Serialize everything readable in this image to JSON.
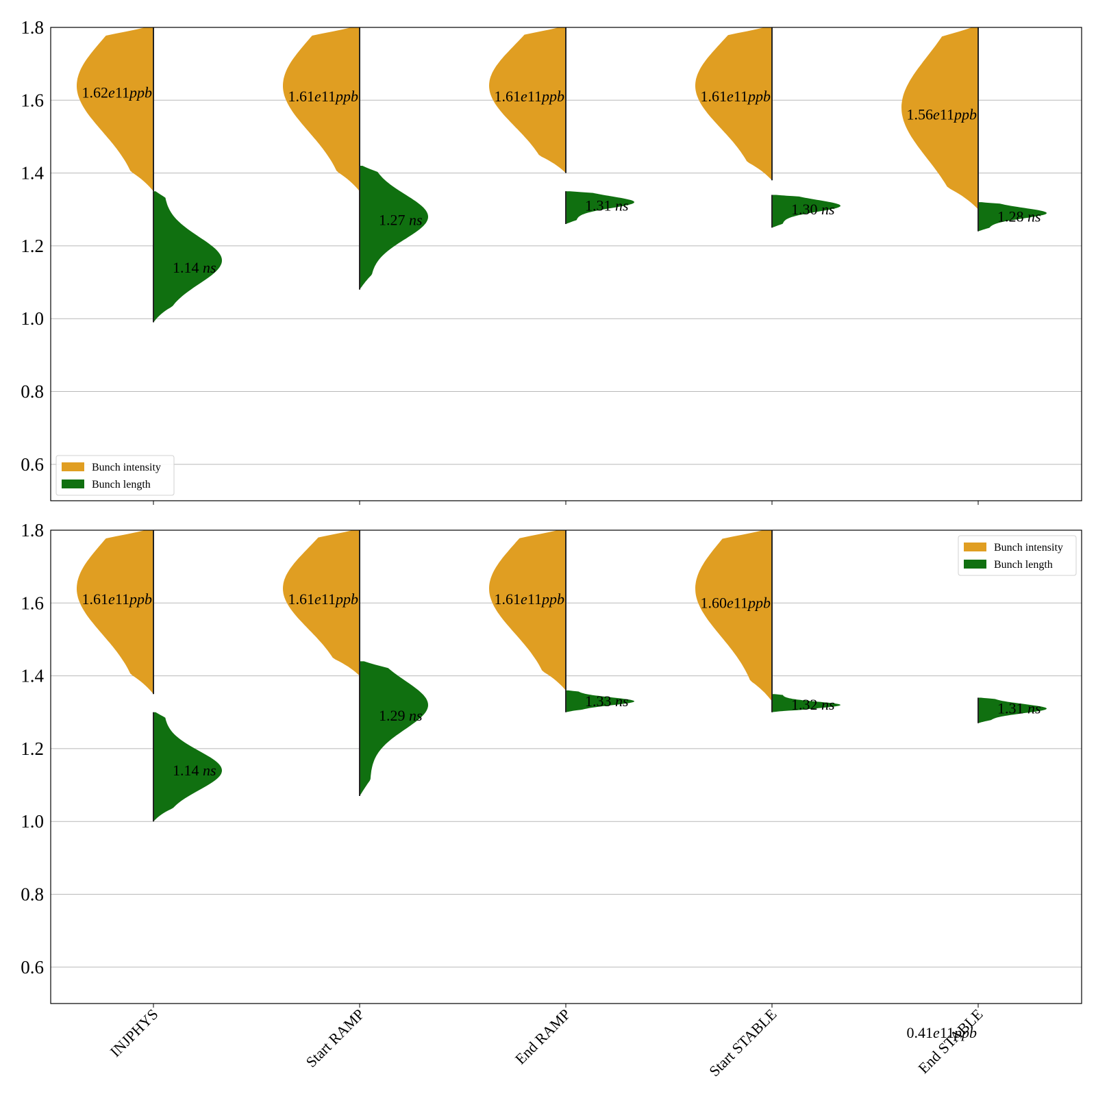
{
  "chart_data": [
    {
      "type": "violin",
      "panel": "top",
      "ylim": [
        0.5,
        1.8
      ],
      "yticks": [
        "0.6",
        "0.8",
        "1.0",
        "1.2",
        "1.4",
        "1.6",
        "1.8"
      ],
      "grid": "horizontal",
      "legend": {
        "placement": "lower-left",
        "entries": [
          "Bunch intensity",
          "Bunch length"
        ]
      },
      "categories": [
        "INJPHYS",
        "Start RAMP",
        "End RAMP",
        "Start STABLE",
        "End STABLE"
      ],
      "series": [
        {
          "name": "Bunch intensity",
          "color": "#e09e22",
          "side": "left",
          "unit": "e11ppb",
          "labels": [
            "1.62",
            "1.61",
            "1.61",
            "1.61",
            "1.56"
          ],
          "medians": [
            1.62,
            1.61,
            1.61,
            1.61,
            1.56
          ],
          "ranges": [
            [
              1.35,
              1.8
            ],
            [
              1.35,
              1.8
            ],
            [
              1.4,
              1.8
            ],
            [
              1.38,
              1.8
            ],
            [
              1.3,
              1.8
            ]
          ],
          "modes": [
            1.64,
            1.64,
            1.64,
            1.64,
            1.58
          ]
        },
        {
          "name": "Bunch length",
          "color": "#107010",
          "side": "right",
          "unit": "ns",
          "labels": [
            "1.14",
            "1.27",
            "1.31",
            "1.30",
            "1.28"
          ],
          "medians": [
            1.14,
            1.27,
            1.31,
            1.3,
            1.28
          ],
          "ranges": [
            [
              0.99,
              1.35
            ],
            [
              1.08,
              1.42
            ],
            [
              1.26,
              1.35
            ],
            [
              1.25,
              1.34
            ],
            [
              1.24,
              1.32
            ]
          ],
          "modes": [
            1.16,
            1.28,
            1.32,
            1.31,
            1.29
          ]
        }
      ]
    },
    {
      "type": "violin",
      "panel": "bottom",
      "ylim": [
        0.5,
        1.8
      ],
      "yticks": [
        "0.6",
        "0.8",
        "1.0",
        "1.2",
        "1.4",
        "1.6",
        "1.8"
      ],
      "grid": "horizontal",
      "legend": {
        "placement": "top-right",
        "entries": [
          "Bunch intensity",
          "Bunch length"
        ]
      },
      "categories": [
        "INJPHYS",
        "Start RAMP",
        "End RAMP",
        "Start STABLE",
        "End STABLE"
      ],
      "series": [
        {
          "name": "Bunch intensity",
          "color": "#e09e22",
          "side": "left",
          "unit": "e11ppb",
          "labels": [
            "1.61",
            "1.61",
            "1.61",
            "1.60",
            "0.41"
          ],
          "medians": [
            1.61,
            1.61,
            1.61,
            1.6,
            0.41
          ],
          "ranges": [
            [
              1.35,
              1.8
            ],
            [
              1.4,
              1.8
            ],
            [
              1.36,
              1.8
            ],
            [
              1.33,
              1.8
            ],
            null
          ],
          "modes": [
            1.64,
            1.64,
            1.64,
            1.64,
            null
          ]
        },
        {
          "name": "Bunch length",
          "color": "#107010",
          "side": "right",
          "unit": "ns",
          "labels": [
            "1.14",
            "1.29",
            "1.33",
            "1.32",
            "1.31"
          ],
          "medians": [
            1.14,
            1.29,
            1.33,
            1.32,
            1.31
          ],
          "ranges": [
            [
              1.0,
              1.3
            ],
            [
              1.07,
              1.44
            ],
            [
              1.3,
              1.36
            ],
            [
              1.3,
              1.35
            ],
            [
              1.27,
              1.34
            ]
          ],
          "modes": [
            1.14,
            1.32,
            1.33,
            1.32,
            1.31
          ]
        }
      ]
    }
  ]
}
